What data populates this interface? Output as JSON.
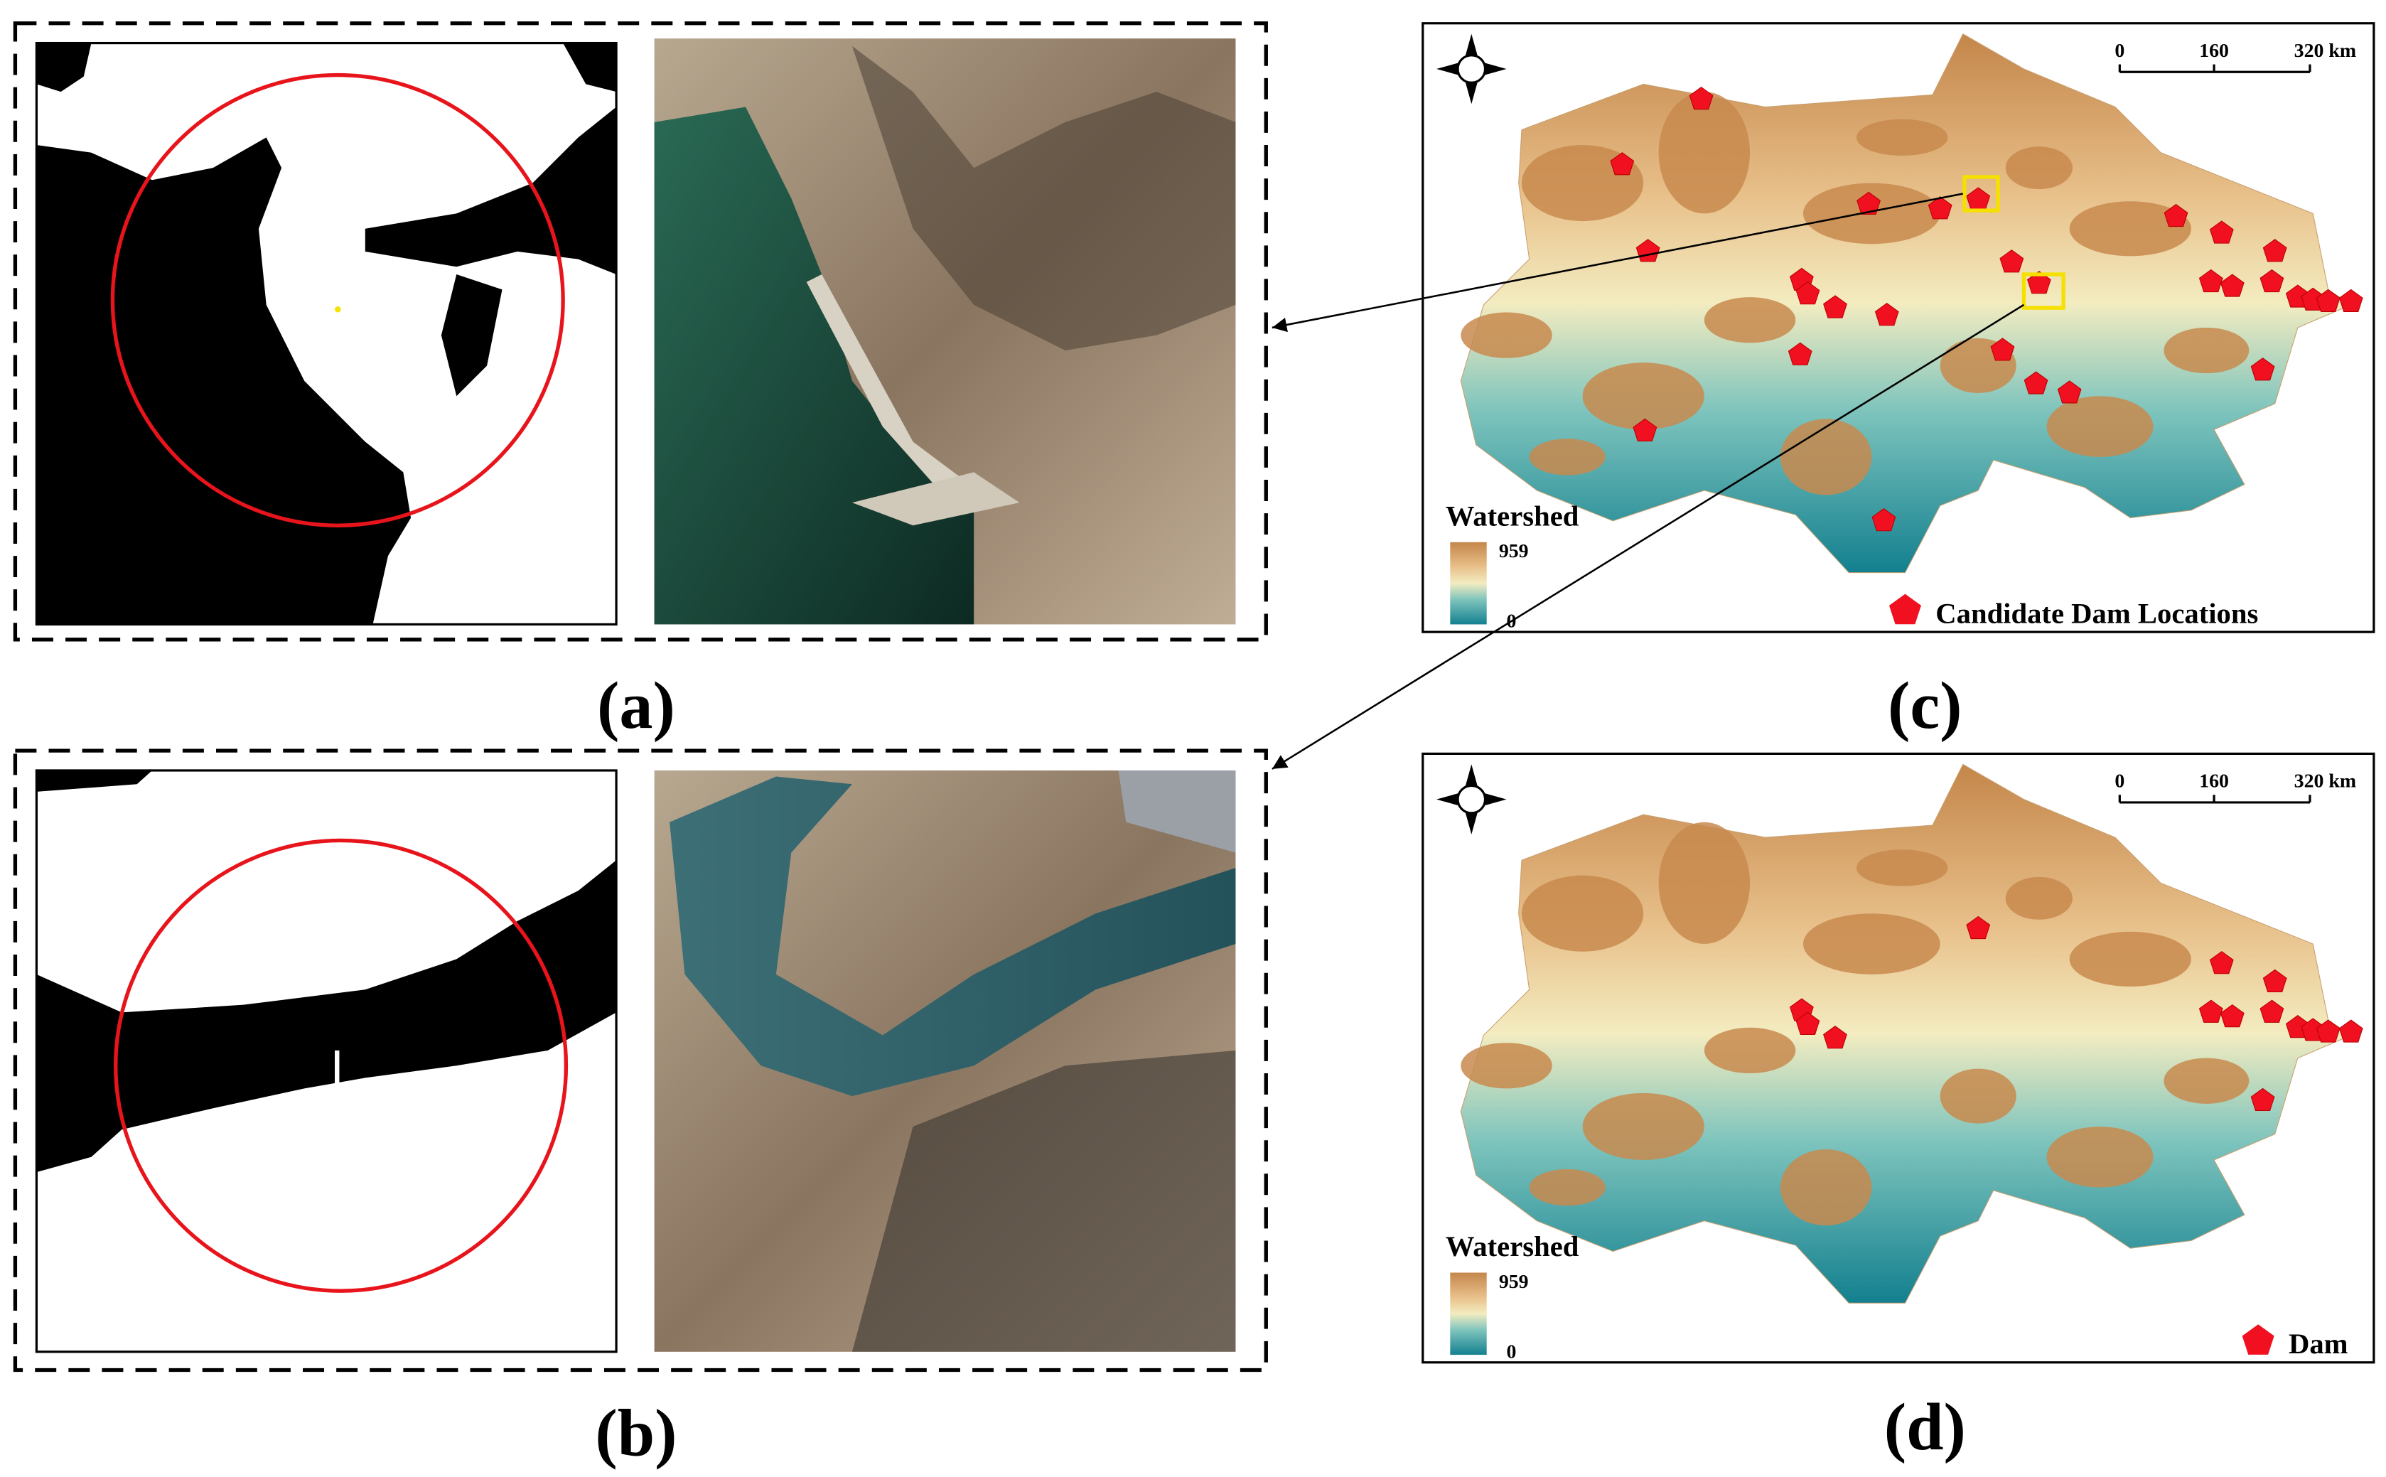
{
  "panels": [
    {
      "label": "(a)"
    },
    {
      "label": "(b)"
    }
  ],
  "maps": [
    {
      "label": "(c)",
      "legend_title": "Watershed",
      "legend_max": "959",
      "legend_min": "0",
      "marker_legend": "Candidate Dam Locations",
      "scale_labels": [
        "0",
        "160",
        "320 km"
      ]
    },
    {
      "label": "(d)",
      "legend_title": "Watershed",
      "legend_max": "959",
      "legend_min": "0",
      "marker_legend": "Dam",
      "scale_labels": [
        "0",
        "160",
        "320 km"
      ]
    }
  ]
}
